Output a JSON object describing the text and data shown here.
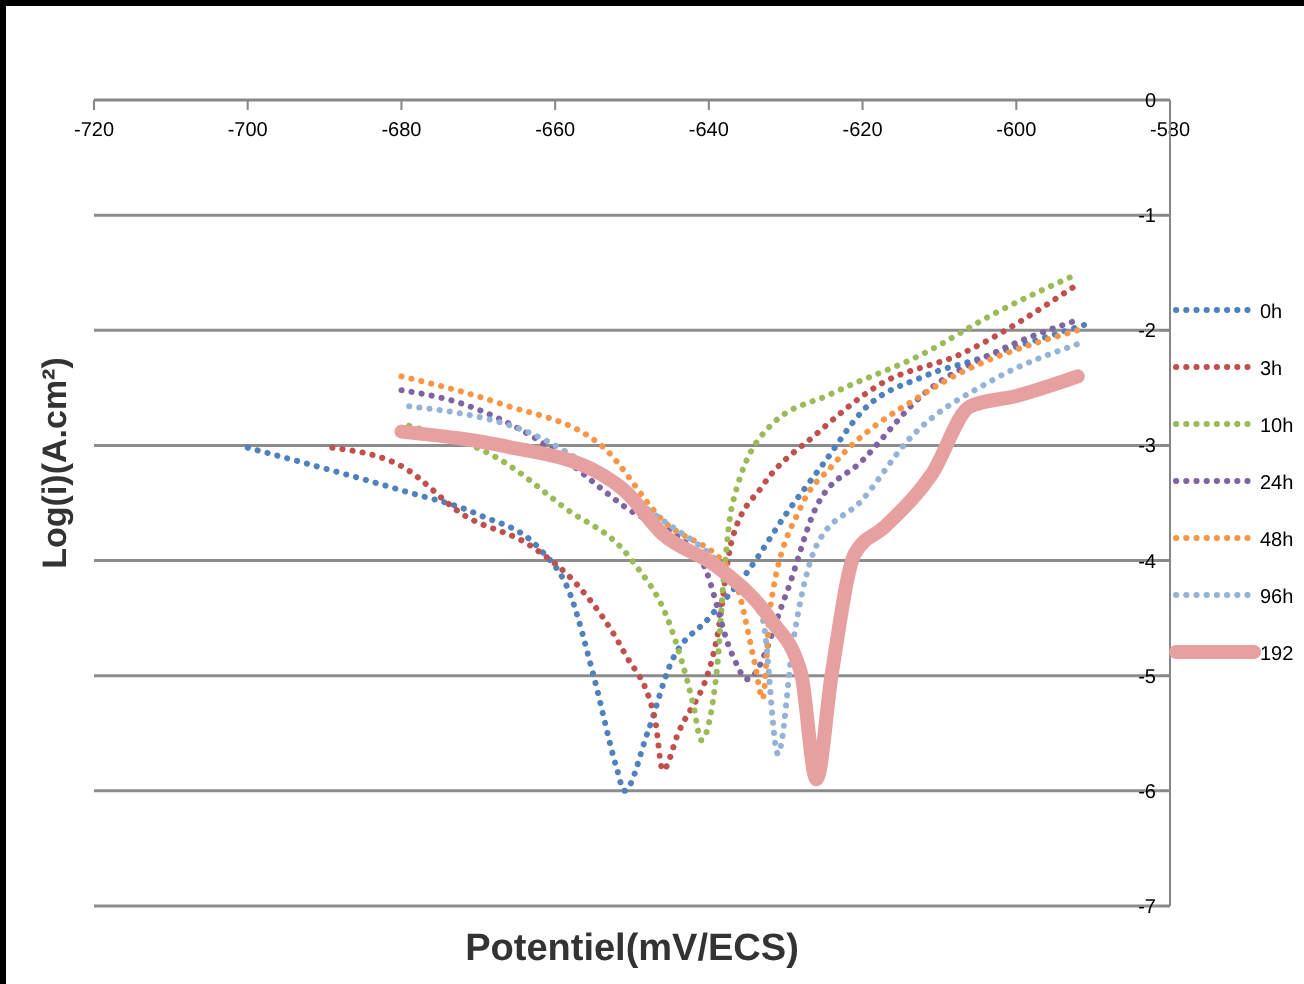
{
  "chart_data": {
    "type": "line",
    "xlabel": "Potentiel(mV/ECS)",
    "ylabel": "Log(i)(A.cm²)",
    "xlim": [
      -720,
      -580
    ],
    "xticks": [
      -720,
      -700,
      -680,
      -660,
      -640,
      -620,
      -600,
      -580
    ],
    "ylim": [
      -7,
      0
    ],
    "yticks": [
      0,
      -1,
      -2,
      -3,
      -4,
      -5,
      -6,
      -7
    ],
    "grid": "y",
    "legend": "right",
    "line_style": "dotted",
    "series": [
      {
        "name": "0h",
        "color": "#4f81bd",
        "x": [
          -700,
          -690,
          -680,
          -670,
          -662,
          -658,
          -655,
          -652,
          -651,
          -648,
          -645,
          -640,
          -635,
          -630,
          -625,
          -620,
          -612,
          -605,
          -598,
          -591
        ],
        "values": [
          -3.02,
          -3.2,
          -3.39,
          -3.6,
          -3.9,
          -4.3,
          -5.0,
          -5.8,
          -6.0,
          -5.5,
          -4.9,
          -4.5,
          -4.1,
          -3.6,
          -3.15,
          -2.7,
          -2.4,
          -2.25,
          -2.1,
          -1.95
        ]
      },
      {
        "name": "3h",
        "color": "#c0504d",
        "x": [
          -689,
          -680,
          -672,
          -663,
          -657,
          -651,
          -647,
          -646,
          -644,
          -639,
          -637,
          -633,
          -626,
          -618,
          -607,
          -592
        ],
        "values": [
          -3.02,
          -3.18,
          -3.6,
          -3.88,
          -4.22,
          -4.8,
          -5.38,
          -5.82,
          -5.5,
          -4.69,
          -3.82,
          -3.35,
          -2.9,
          -2.48,
          -2.2,
          -1.6
        ]
      },
      {
        "name": "10h",
        "color": "#9bbb59",
        "x": [
          -679,
          -667,
          -659,
          -650,
          -645,
          -642,
          -641,
          -639,
          -638,
          -637,
          -632,
          -624,
          -612,
          -603,
          -592
        ],
        "values": [
          -2.83,
          -3.13,
          -3.53,
          -4.0,
          -4.57,
          -5.26,
          -5.56,
          -4.98,
          -4.1,
          -3.53,
          -2.83,
          -2.55,
          -2.2,
          -1.86,
          -1.51
        ]
      },
      {
        "name": "24h",
        "color": "#8064a2",
        "x": [
          -680,
          -672,
          -663,
          -651,
          -641,
          -637,
          -635,
          -630,
          -626,
          -620,
          -612,
          -603,
          -592
        ],
        "values": [
          -2.52,
          -2.64,
          -2.92,
          -3.53,
          -4.0,
          -4.81,
          -5.03,
          -4.3,
          -3.53,
          -3.13,
          -2.55,
          -2.2,
          -1.91
        ]
      },
      {
        "name": "48h",
        "color": "#f79646",
        "x": [
          -680,
          -667,
          -654,
          -646,
          -637,
          -634,
          -633,
          -632,
          -628,
          -624,
          -612,
          -592
        ],
        "values": [
          -2.4,
          -2.64,
          -3.0,
          -3.65,
          -4.11,
          -4.9,
          -5.2,
          -4.4,
          -3.53,
          -3.18,
          -2.55,
          -2.0
        ]
      },
      {
        "name": "96h",
        "color": "#95b3d7",
        "x": [
          -679,
          -663,
          -646,
          -639,
          -633,
          -631,
          -629,
          -626,
          -620,
          -614,
          -603,
          -592
        ],
        "values": [
          -2.66,
          -2.9,
          -3.65,
          -4.0,
          -4.51,
          -5.68,
          -4.69,
          -3.87,
          -3.47,
          -2.95,
          -2.43,
          -2.12
        ]
      },
      {
        "name": "192",
        "color": "#e6a0a0",
        "line_style": "solid",
        "x": [
          -680,
          -667,
          -654,
          -651,
          -646,
          -639,
          -632,
          -628,
          -626,
          -624,
          -621,
          -617,
          -611,
          -606,
          -600,
          -592
        ],
        "values": [
          -2.88,
          -3.0,
          -3.25,
          -3.39,
          -3.77,
          -4.05,
          -4.51,
          -4.98,
          -5.9,
          -4.98,
          -3.94,
          -3.7,
          -3.25,
          -2.66,
          -2.57,
          -2.4
        ]
      }
    ]
  }
}
